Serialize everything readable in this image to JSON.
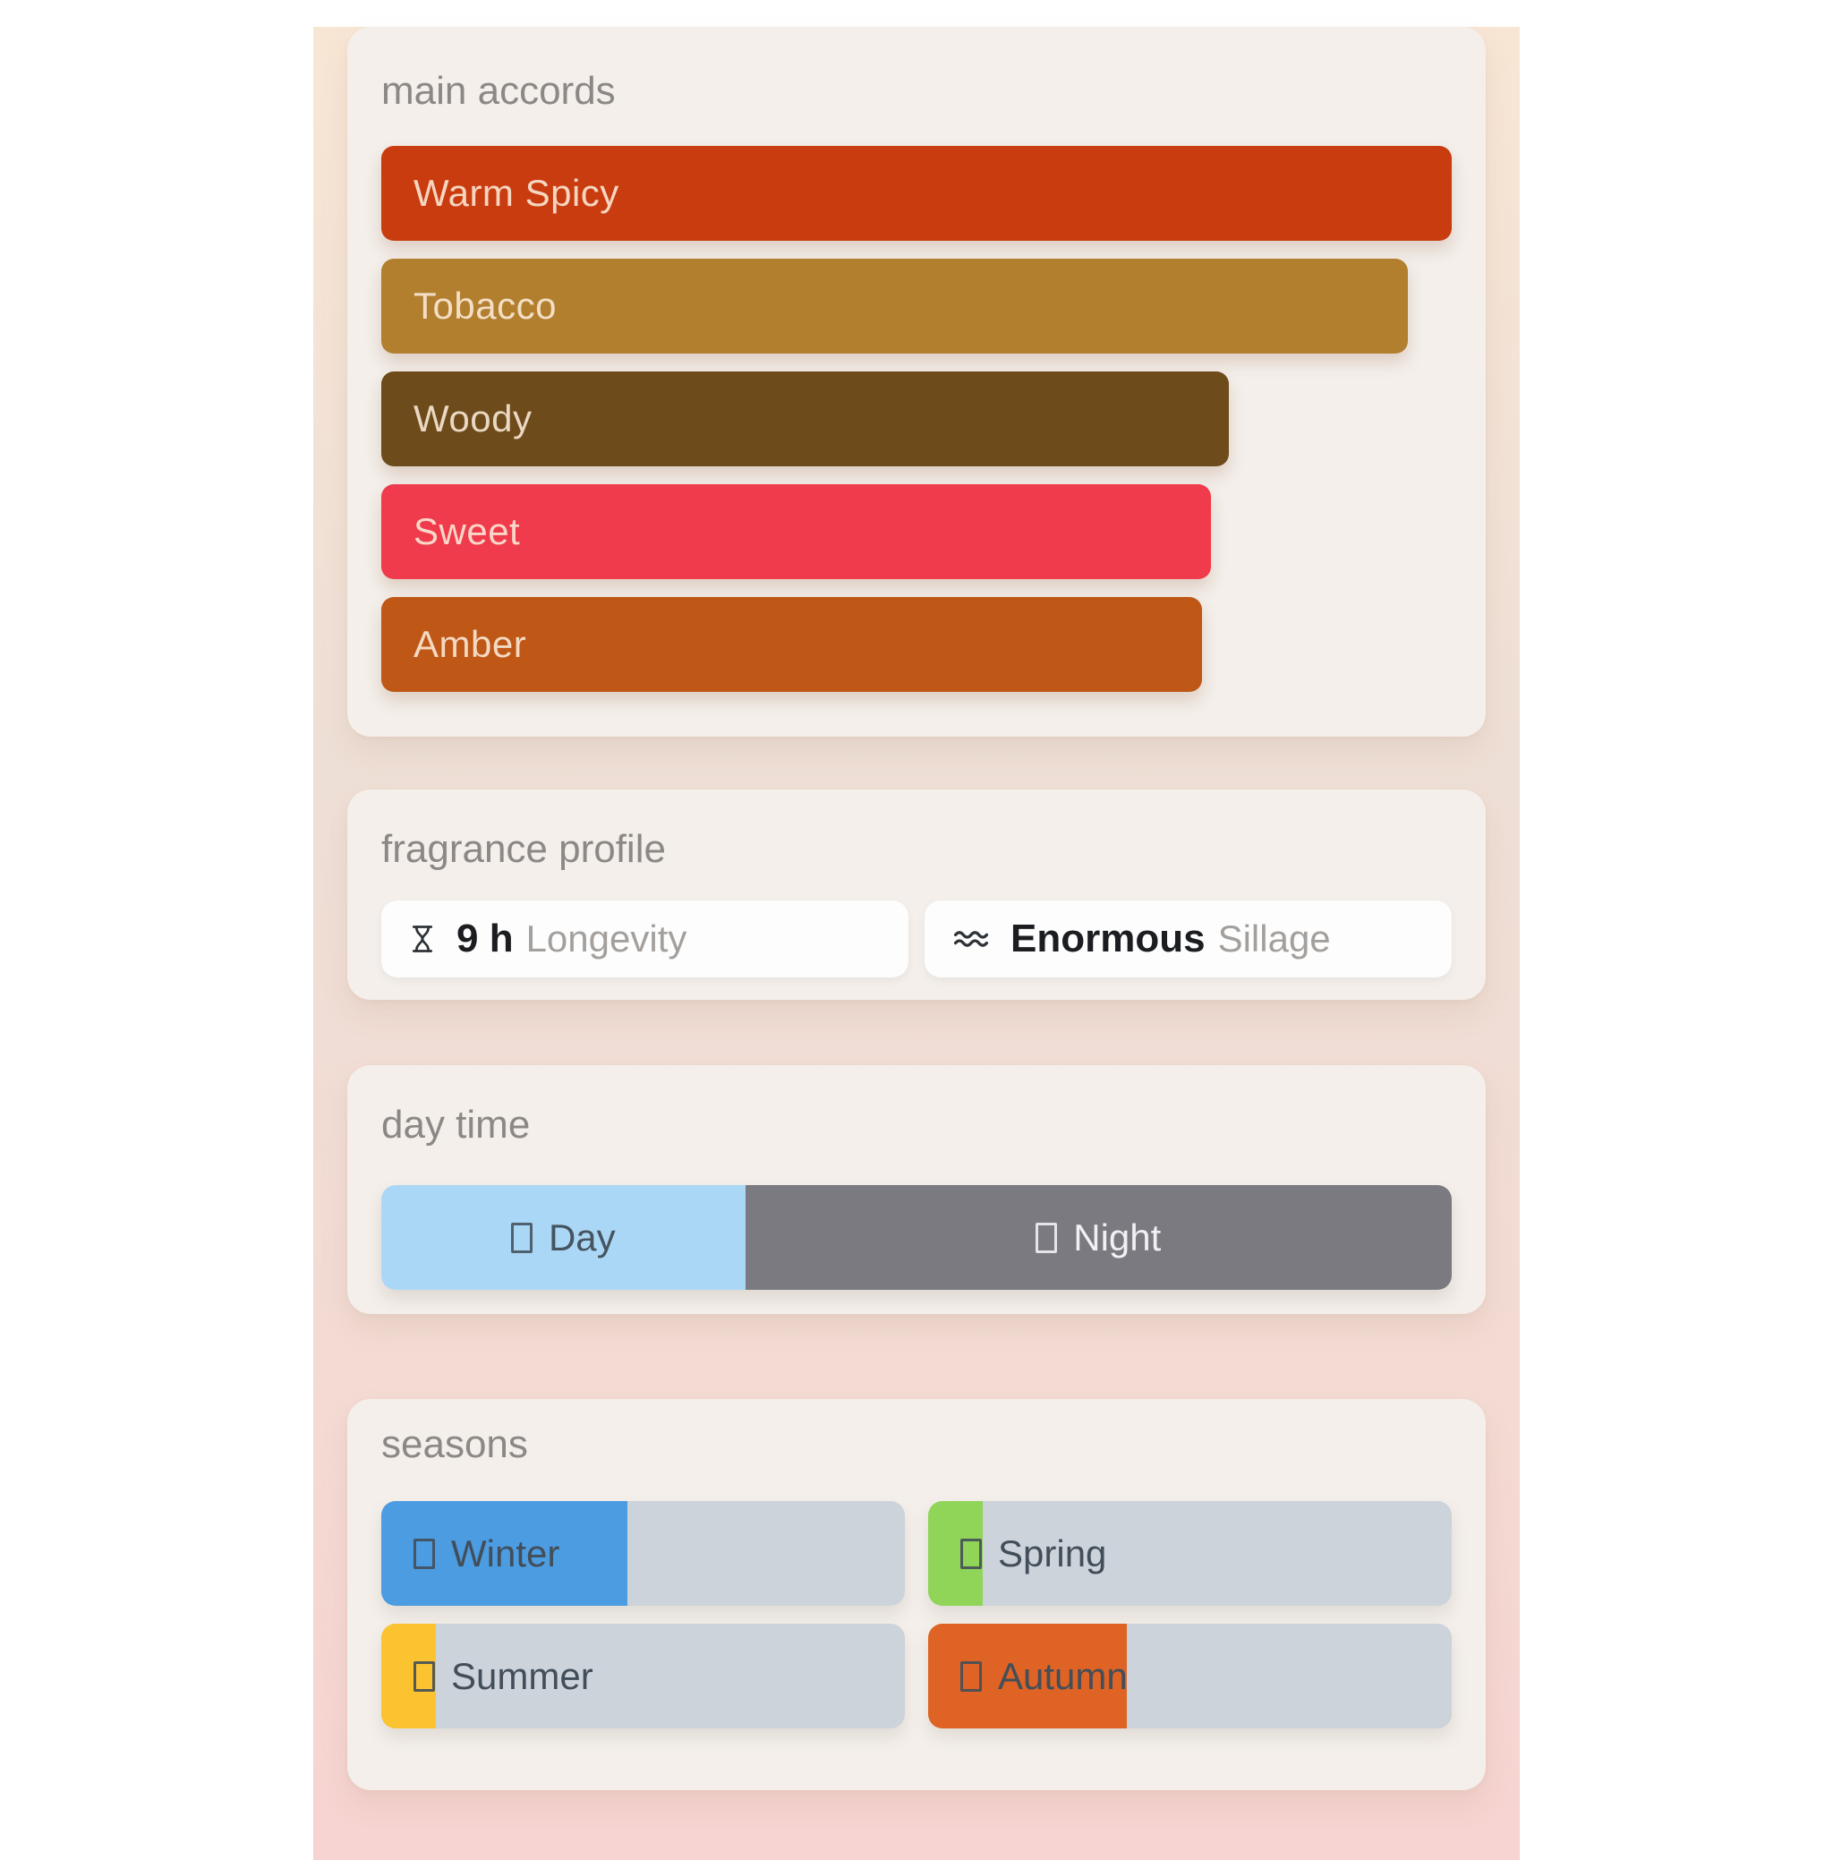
{
  "accords": {
    "title": "main accords",
    "label_text_color": "rgba(252,236,219,0.88)",
    "items": [
      {
        "label": "Warm Spicy",
        "width_pct": 100,
        "color": "#c93c0f"
      },
      {
        "label": "Tobacco",
        "width_pct": 95.9,
        "color": "#b27f2e"
      },
      {
        "label": "Woody",
        "width_pct": 79.2,
        "color": "#6e4b1b"
      },
      {
        "label": "Sweet",
        "width_pct": 77.5,
        "color": "#ef3b4b"
      },
      {
        "label": "Amber",
        "width_pct": 76.7,
        "color": "#bf5716"
      }
    ]
  },
  "profile": {
    "title": "fragrance profile",
    "longevity": {
      "icon": "hourglass-icon",
      "value": "9 h",
      "label": "Longevity"
    },
    "sillage": {
      "icon": "waves-icon",
      "value": "Enormous",
      "label": "Sillage"
    }
  },
  "daytime": {
    "title": "day time",
    "segments": [
      {
        "label": "Day",
        "width_pct": 34,
        "color": "#abd7f6",
        "text_color": "#45545f",
        "icon": "missing-glyph-icon"
      },
      {
        "label": "Night",
        "width_pct": 66,
        "color": "#7c7a81",
        "text_color": "#f1f0f4",
        "icon": "missing-glyph-icon"
      }
    ]
  },
  "seasons": {
    "title": "seasons",
    "track_color": "#cdd3db",
    "label_text_color": "#424e59",
    "items": [
      {
        "label": "Winter",
        "fill_pct": 47,
        "color": "#4c9ce1",
        "icon": "missing-glyph-icon"
      },
      {
        "label": "Spring",
        "fill_pct": 10.5,
        "color": "#90d558",
        "icon": "missing-glyph-icon"
      },
      {
        "label": "Summer",
        "fill_pct": 10.5,
        "color": "#fbc32f",
        "icon": "missing-glyph-icon"
      },
      {
        "label": "Autumn",
        "fill_pct": 38,
        "color": "#de6325",
        "icon": "missing-glyph-icon"
      }
    ]
  }
}
